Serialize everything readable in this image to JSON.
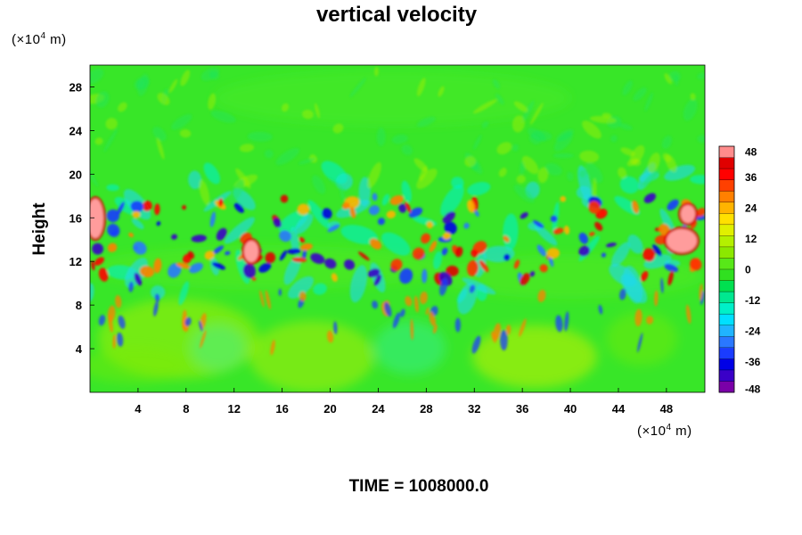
{
  "chart_data": {
    "type": "heatmap",
    "title": "vertical velocity",
    "ylabel": "Height",
    "y_unit_prefix": "(×10",
    "y_unit_exp": "4",
    "y_unit_suffix": " m)",
    "x_unit_prefix": "(×10",
    "x_unit_exp": "4",
    "x_unit_suffix": " m)",
    "xlim": [
      0,
      51.2
    ],
    "ylim": [
      0,
      30
    ],
    "x_ticks": [
      4,
      8,
      12,
      16,
      20,
      24,
      28,
      32,
      36,
      40,
      44,
      48
    ],
    "y_ticks": [
      4,
      8,
      12,
      16,
      20,
      24,
      28
    ],
    "colorbar": {
      "ticks": [
        48,
        36,
        24,
        12,
        0,
        -12,
        -24,
        -36,
        -48
      ],
      "range": [
        -48,
        48
      ],
      "colors": [
        "#7a00a8",
        "#3a00c8",
        "#0000e6",
        "#1a3cff",
        "#2a78ff",
        "#20b4ff",
        "#00e0ff",
        "#00f0c8",
        "#00e890",
        "#00e050",
        "#30e020",
        "#58e818",
        "#8ce800",
        "#b4f000",
        "#e0f000",
        "#ffe000",
        "#ffb400",
        "#ff8000",
        "#ff4000",
        "#ff0000",
        "#e00000",
        "#ff8c8c"
      ]
    },
    "footer": "TIME = 1008000.0"
  }
}
